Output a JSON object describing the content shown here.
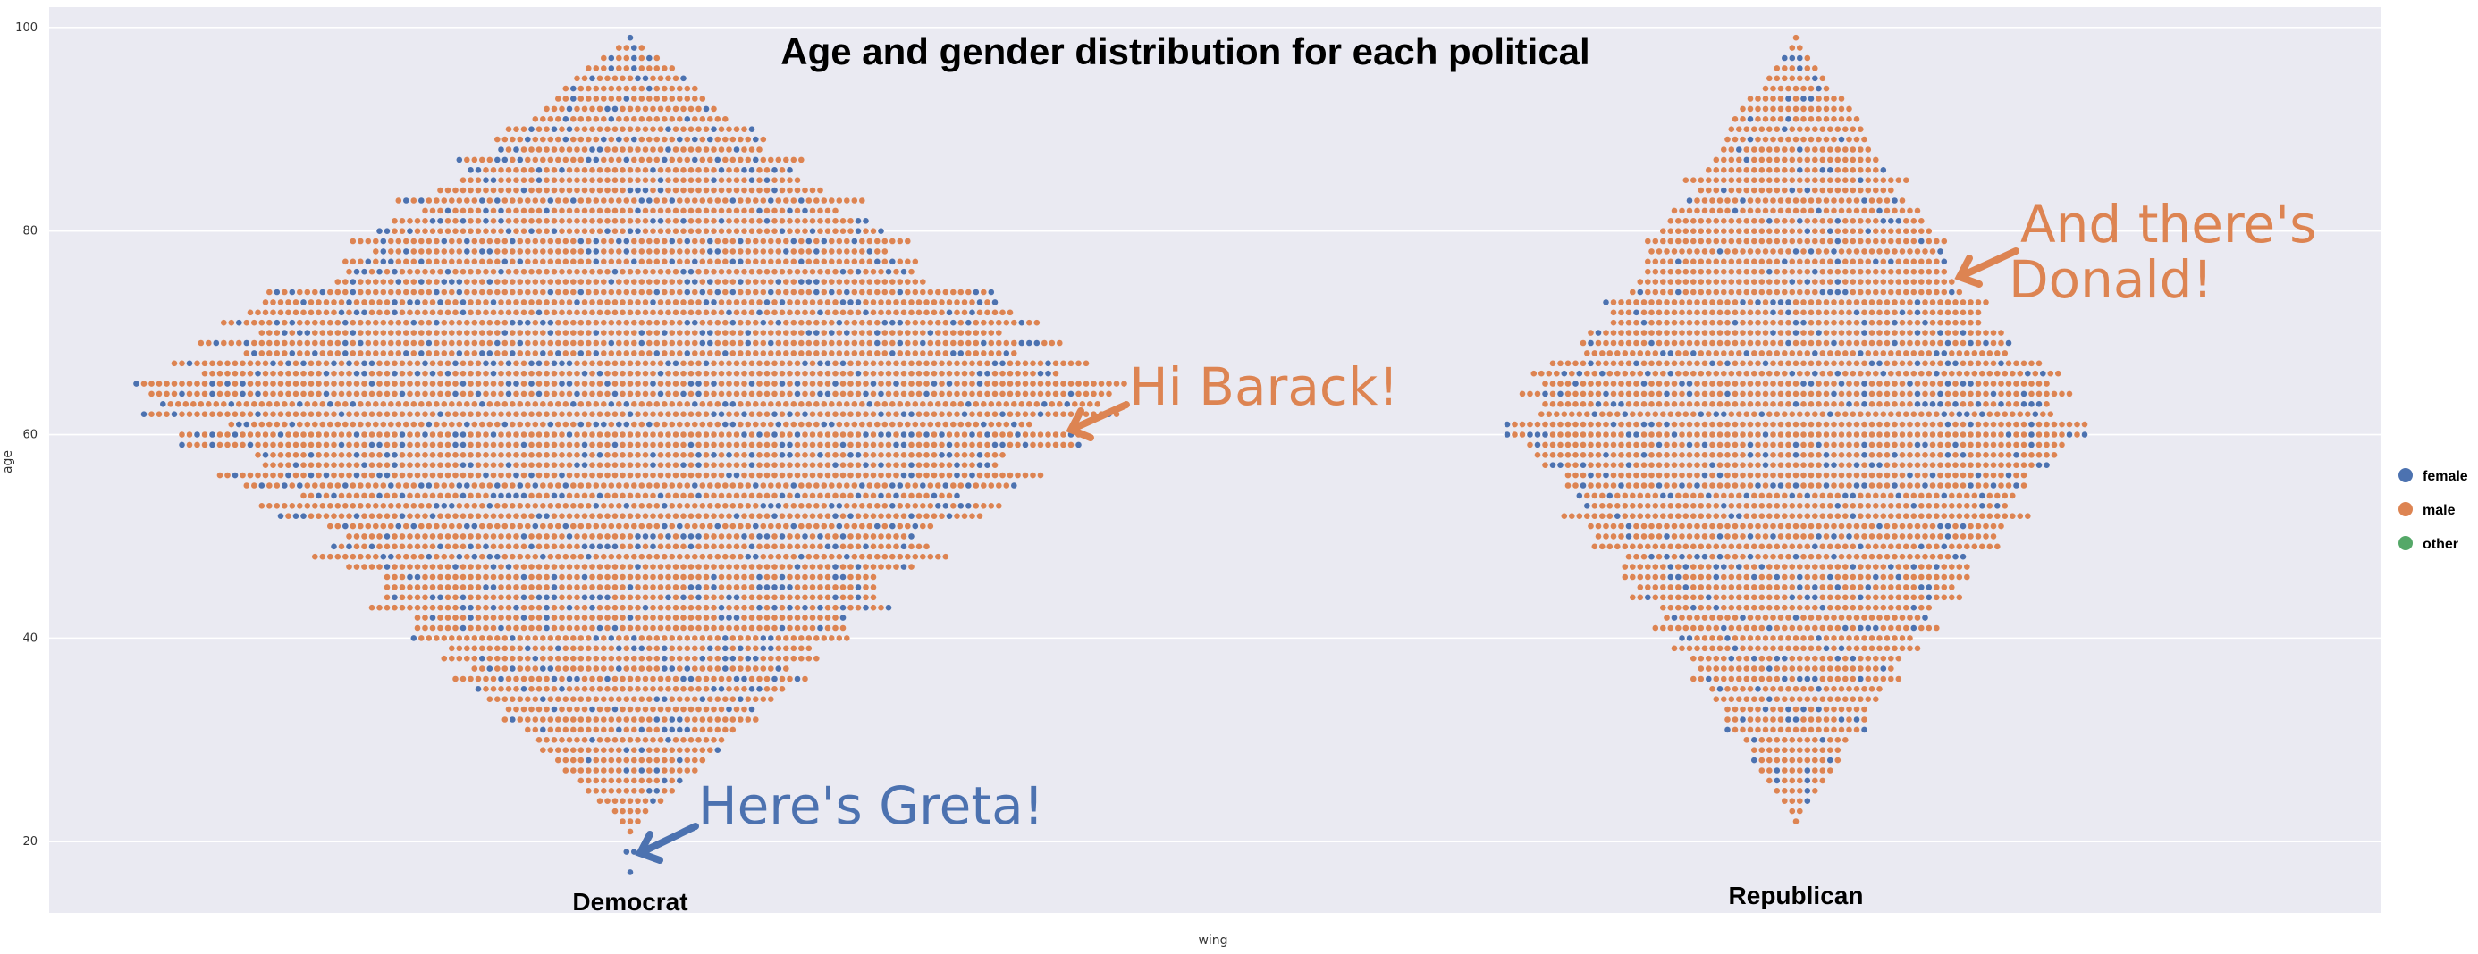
{
  "chart_data": {
    "type": "scatter",
    "subtype": "swarm",
    "title": "Age and gender distribution for each political",
    "xlabel": "wing",
    "ylabel": "age",
    "categories": [
      "Democrat",
      "Republican"
    ],
    "ylim": [
      13,
      102
    ],
    "yticks": [
      20,
      40,
      60,
      80,
      100
    ],
    "grid": true,
    "legend": {
      "placement": "right",
      "entries": [
        {
          "name": "female",
          "color": "#4C72B0"
        },
        {
          "name": "male",
          "color": "#DD8452"
        },
        {
          "name": "other",
          "color": "#55A868"
        }
      ]
    },
    "series": [
      {
        "category": "Democrat",
        "age_range": [
          17,
          99
        ],
        "peak_age": 64,
        "female_share": 0.18,
        "single_points": [
          {
            "age": 17,
            "gender": "female"
          },
          {
            "age": 19,
            "gender": "female"
          }
        ]
      },
      {
        "category": "Republican",
        "age_range": [
          22,
          99
        ],
        "peak_age": 61,
        "female_share": 0.15,
        "single_points": []
      }
    ],
    "annotations": [
      {
        "text": "Hi Barack!",
        "category": "Democrat",
        "age": 61,
        "color": "#DD8452"
      },
      {
        "text": "And there's",
        "category": "Republican",
        "age": 76,
        "color": "#DD8452"
      },
      {
        "text": "Donald!",
        "category": "Republican",
        "age": 76,
        "color": "#DD8452"
      },
      {
        "text": "Here's Greta!",
        "category": "Democrat",
        "age": 19,
        "color": "#4C72B0"
      }
    ]
  },
  "colors": {
    "plot_background": "#EAEAF2",
    "gridline": "#FFFFFF"
  }
}
